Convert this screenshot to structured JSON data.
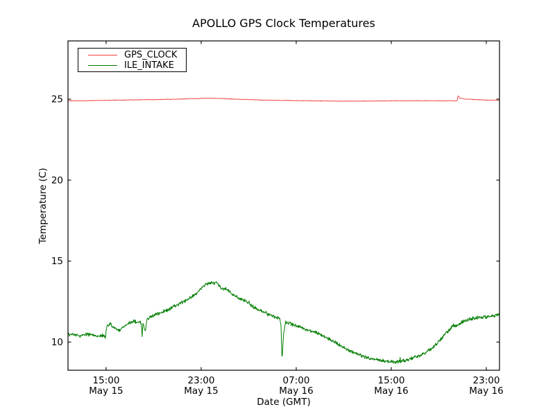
{
  "figure": {
    "background": "#ffffff",
    "axes_color": "#000000"
  },
  "chart_data": {
    "type": "line",
    "title": "APOLLO GPS Clock Temperatures",
    "xlabel": "Date (GMT)",
    "ylabel": "Temperature (C)",
    "x_unit": "hours since May 15 00:00 GMT",
    "xlim": [
      11.79,
      48.11
    ],
    "ylim": [
      8.26,
      28.6
    ],
    "grid": false,
    "tick_direction": "in",
    "yticks": [
      10,
      15,
      20,
      25
    ],
    "xticks": [
      {
        "h": 15,
        "time": "15:00",
        "date": "May 15"
      },
      {
        "h": 23,
        "time": "23:00",
        "date": "May 15"
      },
      {
        "h": 31,
        "time": "07:00",
        "date": "May 16"
      },
      {
        "h": 39,
        "time": "15:00",
        "date": "May 16"
      },
      {
        "h": 47,
        "time": "23:00",
        "date": "May 16"
      }
    ],
    "legend": {
      "position": "upper left",
      "entries": [
        {
          "label": "GPS_CLOCK",
          "color": "#f03c3c"
        },
        {
          "label": "ILE_INTAKE",
          "color": "#007d00"
        }
      ]
    },
    "series": [
      {
        "name": "GPS_CLOCK",
        "color": "#f03c3c",
        "width": 0.9,
        "noise": 0.022,
        "spike": 0.04,
        "points": [
          [
            11.79,
            24.9
          ],
          [
            13.0,
            24.9
          ],
          [
            14.0,
            24.92
          ],
          [
            15.0,
            24.93
          ],
          [
            16.5,
            24.95
          ],
          [
            18.0,
            24.97
          ],
          [
            19.5,
            24.98
          ],
          [
            21.0,
            25.0
          ],
          [
            22.0,
            25.03
          ],
          [
            23.0,
            25.05
          ],
          [
            23.6,
            25.06
          ],
          [
            24.2,
            25.05
          ],
          [
            25.0,
            25.03
          ],
          [
            26.0,
            25.0
          ],
          [
            27.0,
            24.97
          ],
          [
            28.0,
            24.95
          ],
          [
            29.0,
            24.93
          ],
          [
            30.5,
            24.92
          ],
          [
            32.0,
            24.9
          ],
          [
            33.5,
            24.89
          ],
          [
            35.0,
            24.88
          ],
          [
            36.5,
            24.88
          ],
          [
            38.0,
            24.89
          ],
          [
            39.5,
            24.9
          ],
          [
            41.0,
            24.9
          ],
          [
            42.5,
            24.9
          ],
          [
            44.0,
            24.9
          ],
          [
            44.55,
            24.9
          ],
          [
            44.62,
            25.22
          ],
          [
            44.75,
            25.08
          ],
          [
            45.0,
            25.03
          ],
          [
            45.5,
            25.0
          ],
          [
            46.2,
            24.97
          ],
          [
            47.0,
            24.95
          ],
          [
            48.11,
            24.93
          ]
        ]
      },
      {
        "name": "ILE_INTAKE",
        "color": "#007d00",
        "width": 1.0,
        "noise": 0.13,
        "spike": 0.45,
        "points": [
          [
            11.79,
            10.5
          ],
          [
            12.3,
            10.45
          ],
          [
            12.8,
            10.38
          ],
          [
            13.3,
            10.48
          ],
          [
            13.8,
            10.42
          ],
          [
            14.3,
            10.35
          ],
          [
            14.8,
            10.42
          ],
          [
            14.95,
            10.3
          ],
          [
            15.05,
            11.0
          ],
          [
            15.35,
            11.1
          ],
          [
            15.8,
            10.82
          ],
          [
            16.1,
            10.72
          ],
          [
            16.5,
            10.95
          ],
          [
            17.0,
            11.2
          ],
          [
            17.4,
            11.3
          ],
          [
            17.95,
            11.18
          ],
          [
            18.03,
            10.35
          ],
          [
            18.1,
            11.25
          ],
          [
            18.3,
            10.6
          ],
          [
            18.42,
            11.35
          ],
          [
            18.9,
            11.62
          ],
          [
            19.5,
            11.8
          ],
          [
            20.1,
            11.95
          ],
          [
            20.6,
            12.15
          ],
          [
            21.0,
            12.3
          ],
          [
            21.5,
            12.5
          ],
          [
            21.9,
            12.62
          ],
          [
            22.4,
            12.9
          ],
          [
            22.7,
            13.05
          ],
          [
            23.0,
            13.35
          ],
          [
            23.4,
            13.55
          ],
          [
            23.7,
            13.62
          ],
          [
            23.9,
            13.72
          ],
          [
            24.1,
            13.6
          ],
          [
            24.3,
            13.75
          ],
          [
            24.5,
            13.45
          ],
          [
            24.8,
            13.3
          ],
          [
            25.1,
            13.28
          ],
          [
            25.4,
            13.1
          ],
          [
            25.7,
            12.92
          ],
          [
            26.2,
            12.72
          ],
          [
            26.8,
            12.5
          ],
          [
            27.4,
            12.18
          ],
          [
            28.0,
            11.95
          ],
          [
            28.6,
            11.72
          ],
          [
            29.1,
            11.58
          ],
          [
            29.6,
            11.45
          ],
          [
            29.72,
            11.1
          ],
          [
            29.8,
            8.9
          ],
          [
            29.88,
            9.8
          ],
          [
            29.95,
            10.6
          ],
          [
            30.1,
            11.25
          ],
          [
            30.6,
            11.1
          ],
          [
            31.1,
            10.95
          ],
          [
            31.6,
            10.85
          ],
          [
            32.1,
            10.72
          ],
          [
            32.6,
            10.6
          ],
          [
            33.1,
            10.45
          ],
          [
            33.6,
            10.25
          ],
          [
            34.1,
            10.05
          ],
          [
            34.6,
            9.85
          ],
          [
            35.1,
            9.62
          ],
          [
            35.6,
            9.42
          ],
          [
            36.1,
            9.25
          ],
          [
            36.7,
            9.1
          ],
          [
            37.2,
            9.0
          ],
          [
            37.7,
            8.92
          ],
          [
            38.2,
            8.85
          ],
          [
            38.8,
            8.8
          ],
          [
            39.3,
            8.78
          ],
          [
            39.8,
            8.82
          ],
          [
            40.3,
            8.9
          ],
          [
            40.8,
            9.0
          ],
          [
            41.3,
            9.15
          ],
          [
            41.8,
            9.3
          ],
          [
            42.3,
            9.55
          ],
          [
            42.7,
            9.8
          ],
          [
            43.1,
            10.1
          ],
          [
            43.5,
            10.5
          ],
          [
            43.9,
            10.75
          ],
          [
            44.2,
            11.05
          ],
          [
            44.5,
            10.95
          ],
          [
            44.8,
            11.15
          ],
          [
            45.2,
            11.3
          ],
          [
            45.6,
            11.42
          ],
          [
            46.0,
            11.48
          ],
          [
            46.5,
            11.52
          ],
          [
            47.0,
            11.55
          ],
          [
            47.5,
            11.6
          ],
          [
            48.11,
            11.7
          ]
        ]
      }
    ]
  }
}
